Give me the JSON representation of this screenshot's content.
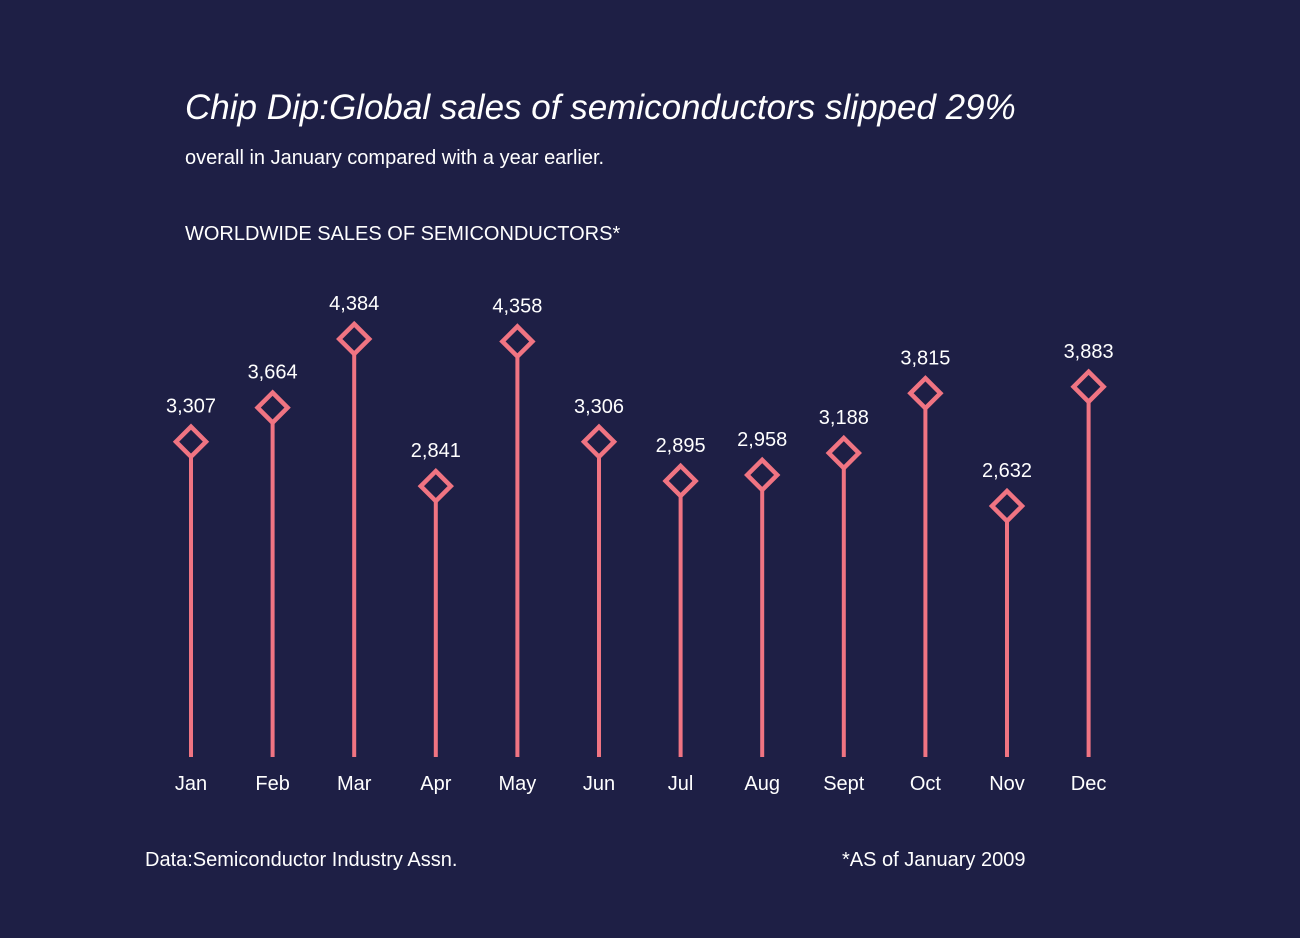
{
  "header": {
    "title": "Chip Dip:Global sales of semiconductors slipped 29%",
    "subtitle": "overall in January compared with a year earlier.",
    "chart_heading": "WORLDWIDE SALES OF SEMICONDUCTORS*"
  },
  "footer": {
    "source": "Data:Semiconductor Industry Assn.",
    "footnote": "*AS of January 2009"
  },
  "colors": {
    "background": "#1e1f45",
    "marker": "#f07482",
    "text": "#ffffff"
  },
  "chart_data": {
    "type": "lollipop",
    "title": "WORLDWIDE SALES OF SEMICONDUCTORS*",
    "categories": [
      "Jan",
      "Feb",
      "Mar",
      "Apr",
      "May",
      "Jun",
      "Jul",
      "Aug",
      "Sept",
      "Oct",
      "Nov",
      "Dec"
    ],
    "values": [
      3307,
      3664,
      4384,
      2841,
      4358,
      3306,
      2895,
      2958,
      3188,
      3815,
      2632,
      3883
    ],
    "value_labels": [
      "3,307",
      "3,664",
      "4,384",
      "2,841",
      "4,358",
      "3,306",
      "2,895",
      "2,958",
      "3,188",
      "3,815",
      "2,632",
      "3,883"
    ],
    "marker": "hollow-diamond",
    "grid": false,
    "legend": "none"
  }
}
